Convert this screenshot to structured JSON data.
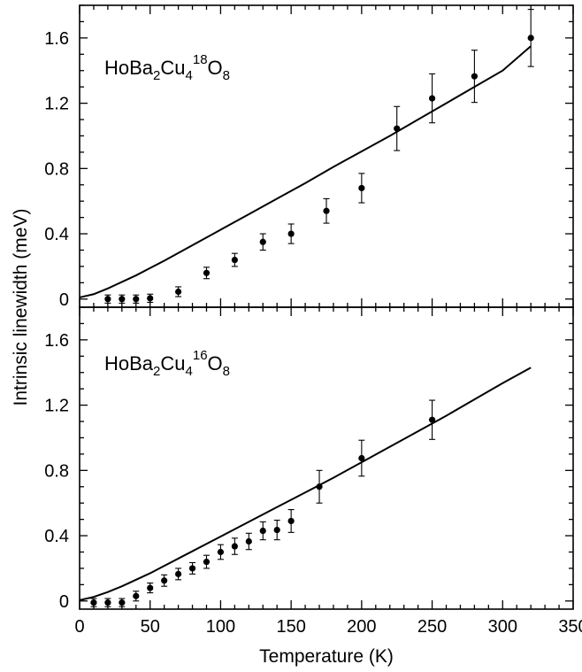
{
  "chart_data": {
    "type": "scatter",
    "layout": "two vertically stacked panels sharing x axis",
    "xlabel": "Temperature (K)",
    "ylabel": "Intrinsic linewidth (meV)",
    "xlim": [
      0,
      350
    ],
    "ylim": [
      -0.05,
      1.8
    ],
    "xticks": [
      "0",
      "50",
      "100",
      "150",
      "200",
      "250",
      "300",
      "350"
    ],
    "yticks": [
      "0",
      "0.4",
      "0.8",
      "1.2",
      "1.6"
    ],
    "grid": false,
    "panels": [
      {
        "label": {
          "base": "HoBa",
          "s1": "2",
          "mid": "Cu",
          "s2": "4",
          "sup": "18",
          "end": "O",
          "s3": "8"
        },
        "series": [
          {
            "type": "scatter_errorbars",
            "x": [
              20,
              30,
              40,
              50,
              70,
              90,
              110,
              130,
              150,
              175,
              200,
              225,
              250,
              280,
              320
            ],
            "y": [
              0.0,
              0.0,
              0.0,
              0.005,
              0.045,
              0.16,
              0.24,
              0.35,
              0.4,
              0.54,
              0.68,
              1.045,
              1.23,
              1.365,
              1.6
            ],
            "err": [
              0.025,
              0.025,
              0.025,
              0.025,
              0.03,
              0.035,
              0.04,
              0.05,
              0.06,
              0.075,
              0.09,
              0.135,
              0.15,
              0.16,
              0.175
            ]
          },
          {
            "type": "line",
            "x": [
              0,
              10,
              20,
              30,
              40,
              50,
              60,
              80,
              100,
              120,
              140,
              160,
              180,
              200,
              220,
              240,
              260,
              280,
              300,
              320
            ],
            "y": [
              0.01,
              0.03,
              0.065,
              0.105,
              0.145,
              0.19,
              0.235,
              0.33,
              0.425,
              0.52,
              0.615,
              0.71,
              0.81,
              0.905,
              1.0,
              1.1,
              1.2,
              1.3,
              1.4,
              1.55
            ]
          }
        ]
      },
      {
        "label": {
          "base": "HoBa",
          "s1": "2",
          "mid": "Cu",
          "s2": "4",
          "sup": "16",
          "end": "O",
          "s3": "8"
        },
        "series": [
          {
            "type": "scatter_errorbars",
            "x": [
              10,
              20,
              30,
              40,
              50,
              60,
              70,
              80,
              90,
              100,
              110,
              120,
              130,
              140,
              150,
              170,
              200,
              250
            ],
            "y": [
              -0.01,
              -0.01,
              -0.01,
              0.03,
              0.08,
              0.125,
              0.165,
              0.2,
              0.24,
              0.3,
              0.335,
              0.365,
              0.43,
              0.435,
              0.49,
              0.7,
              0.875,
              1.11
            ],
            "err": [
              0.025,
              0.025,
              0.025,
              0.03,
              0.03,
              0.035,
              0.035,
              0.035,
              0.04,
              0.045,
              0.05,
              0.05,
              0.055,
              0.06,
              0.07,
              0.1,
              0.11,
              0.12
            ]
          },
          {
            "type": "line",
            "x": [
              0,
              10,
              20,
              30,
              40,
              50,
              60,
              80,
              100,
              120,
              140,
              160,
              180,
              200,
              220,
              240,
              260,
              280,
              300,
              320
            ],
            "y": [
              0.005,
              0.025,
              0.055,
              0.09,
              0.13,
              0.17,
              0.215,
              0.305,
              0.395,
              0.485,
              0.575,
              0.665,
              0.755,
              0.85,
              0.945,
              1.04,
              1.135,
              1.235,
              1.335,
              1.43
            ]
          }
        ]
      }
    ]
  }
}
